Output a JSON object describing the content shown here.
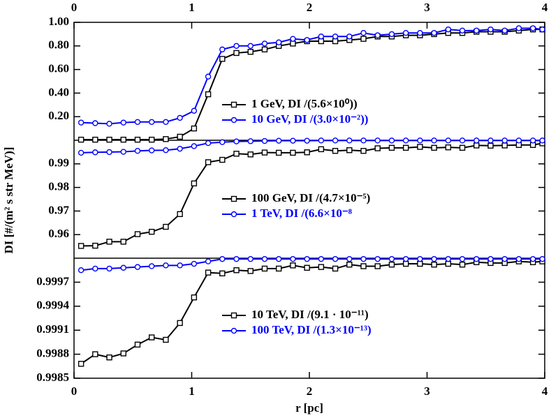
{
  "chart_data": [
    {
      "type": "line",
      "x": [
        0.06,
        0.18,
        0.3,
        0.42,
        0.54,
        0.66,
        0.78,
        0.9,
        1.02,
        1.14,
        1.26,
        1.38,
        1.5,
        1.62,
        1.74,
        1.86,
        1.98,
        2.1,
        2.22,
        2.34,
        2.46,
        2.58,
        2.7,
        2.82,
        2.94,
        3.06,
        3.18,
        3.3,
        3.42,
        3.54,
        3.66,
        3.78,
        3.9,
        3.98
      ],
      "xlim": [
        0,
        4
      ],
      "xticks": [
        0,
        1,
        2,
        3,
        4
      ],
      "ylim": [
        0,
        1
      ],
      "yticks": [
        {
          "value": 0.2,
          "label": "0.20"
        },
        {
          "value": 0.4,
          "label": "0.40"
        },
        {
          "value": 0.6,
          "label": "0.60"
        },
        {
          "value": 0.8,
          "label": "0.80"
        },
        {
          "value": 1,
          "label": "1.00"
        }
      ],
      "series": [
        {
          "name": "1 GeV, DI /(5.6×10⁰))",
          "color": "#000000",
          "marker": "square",
          "values": [
            0.005,
            0.005,
            0.005,
            0.005,
            0.005,
            0.005,
            0.01,
            0.03,
            0.1,
            0.39,
            0.69,
            0.74,
            0.75,
            0.77,
            0.8,
            0.82,
            0.84,
            0.84,
            0.84,
            0.85,
            0.86,
            0.88,
            0.88,
            0.89,
            0.89,
            0.9,
            0.91,
            0.91,
            0.92,
            0.92,
            0.92,
            0.93,
            0.94,
            0.94
          ]
        },
        {
          "name": "10 GeV, DI /(3.0×10⁻²))",
          "color": "#0000ff",
          "marker": "circle",
          "values": [
            0.15,
            0.145,
            0.14,
            0.15,
            0.155,
            0.155,
            0.155,
            0.19,
            0.25,
            0.54,
            0.77,
            0.8,
            0.8,
            0.82,
            0.83,
            0.86,
            0.85,
            0.88,
            0.88,
            0.88,
            0.91,
            0.89,
            0.9,
            0.91,
            0.91,
            0.91,
            0.94,
            0.93,
            0.93,
            0.94,
            0.93,
            0.95,
            0.95,
            0.94
          ]
        }
      ]
    },
    {
      "type": "line",
      "x": [
        0.06,
        0.18,
        0.3,
        0.42,
        0.54,
        0.66,
        0.78,
        0.9,
        1.02,
        1.14,
        1.26,
        1.38,
        1.5,
        1.62,
        1.74,
        1.86,
        1.98,
        2.1,
        2.22,
        2.34,
        2.46,
        2.58,
        2.7,
        2.82,
        2.94,
        3.06,
        3.18,
        3.3,
        3.42,
        3.54,
        3.66,
        3.78,
        3.9,
        3.98
      ],
      "xlim": [
        0,
        4
      ],
      "ylim": [
        0.95,
        1
      ],
      "yticks": [
        0.96,
        0.97,
        0.98,
        0.99
      ],
      "ylabel": "DI [#/(m² s str MeV)]",
      "series": [
        {
          "name": "100 GeV, DI /(4.7×10⁻⁵)",
          "color": "#000000",
          "marker": "square",
          "values": [
            0.9552,
            0.9553,
            0.957,
            0.957,
            0.9602,
            0.9612,
            0.9633,
            0.9687,
            0.9817,
            0.9907,
            0.9917,
            0.9943,
            0.994,
            0.9948,
            0.9947,
            0.9947,
            0.9949,
            0.9962,
            0.9955,
            0.9958,
            0.9955,
            0.9966,
            0.9968,
            0.9968,
            0.9972,
            0.9968,
            0.997,
            0.9968,
            0.9978,
            0.9977,
            0.9978,
            0.998,
            0.998,
            0.9987
          ]
        },
        {
          "name": "1 TeV, DI /(6.6×10⁻⁸",
          "color": "#0000ff",
          "marker": "circle",
          "values": [
            0.9947,
            0.9949,
            0.995,
            0.9951,
            0.9955,
            0.9957,
            0.9958,
            0.9964,
            0.9975,
            0.9988,
            0.9992,
            0.9995,
            0.9996,
            0.9997,
            0.9998,
            0.9998,
            0.9998,
            0.9999,
            0.9999,
            0.9999,
            0.9999,
            0.9999,
            0.9999,
            0.9999,
            0.9999,
            0.9999,
            0.9999,
            0.9999,
            0.9999,
            0.9999,
            0.9999,
            0.9999,
            0.9999,
            0.9999
          ]
        }
      ]
    },
    {
      "type": "line",
      "x": [
        0.06,
        0.18,
        0.3,
        0.42,
        0.54,
        0.66,
        0.78,
        0.9,
        1.02,
        1.14,
        1.26,
        1.38,
        1.5,
        1.62,
        1.74,
        1.86,
        1.98,
        2.1,
        2.22,
        2.34,
        2.46,
        2.58,
        2.7,
        2.82,
        2.94,
        3.06,
        3.18,
        3.3,
        3.42,
        3.54,
        3.66,
        3.78,
        3.9,
        3.98
      ],
      "xlim": [
        0,
        4
      ],
      "xticks": [
        0,
        1,
        2,
        3,
        4
      ],
      "xlabel": "r [pc]",
      "ylim": [
        0.9985,
        1
      ],
      "yticks": [
        0.9985,
        0.9988,
        0.9991,
        0.9994,
        0.9997
      ],
      "series": [
        {
          "name": "10 TeV, DI /(9.1 · 10⁻¹¹)",
          "color": "#000000",
          "marker": "square",
          "values": [
            0.99868,
            0.9988,
            0.99876,
            0.99881,
            0.99892,
            0.99901,
            0.99898,
            0.99919,
            0.99951,
            0.99982,
            0.99981,
            0.99985,
            0.99984,
            0.99987,
            0.99987,
            0.99991,
            0.99988,
            0.99989,
            0.99987,
            0.99992,
            0.9999,
            0.9999,
            0.99992,
            0.99993,
            0.99993,
            0.99992,
            0.99993,
            0.99992,
            0.99995,
            0.99994,
            0.99994,
            0.99996,
            0.99995,
            0.99996
          ]
        },
        {
          "name": "100 TeV, DI /(1.3×10⁻¹³)",
          "color": "#0000ff",
          "marker": "circle",
          "values": [
            0.99985,
            0.99987,
            0.99987,
            0.99988,
            0.99989,
            0.9999,
            0.99991,
            0.99991,
            0.99993,
            0.99996,
            0.99999,
            0.99999,
            0.99999,
            0.99999,
            0.99999,
            0.99999,
            0.99999,
            0.99999,
            0.99999,
            0.99999,
            0.99999,
            0.99999,
            0.99999,
            0.99999,
            0.99999,
            0.99999,
            0.99999,
            0.99999,
            0.99999,
            0.99999,
            0.99999,
            0.99999,
            0.99999,
            0.99999
          ]
        }
      ]
    }
  ]
}
